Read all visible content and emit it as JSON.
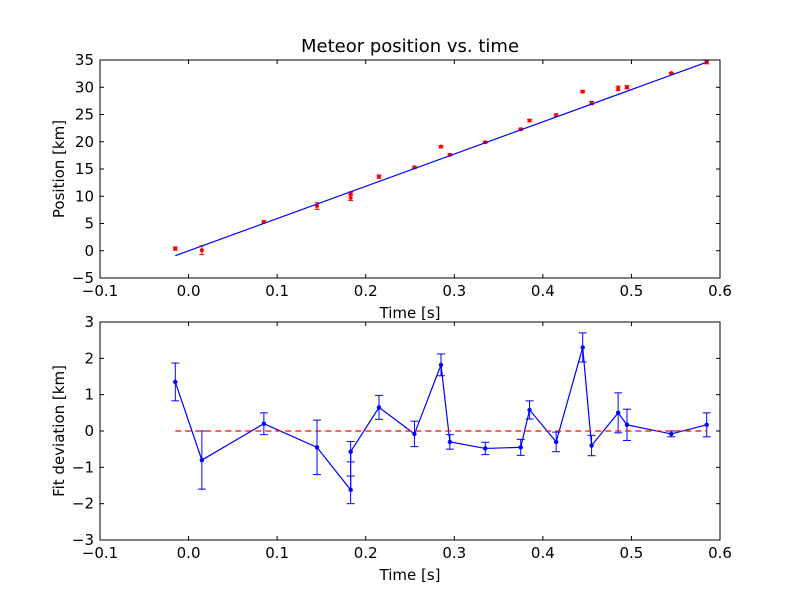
{
  "chart_data": [
    {
      "type": "scatter",
      "title": "Meteor position vs. time",
      "xlabel": "Time [s]",
      "ylabel": "Position [km]",
      "xlim": [
        -0.1,
        0.6
      ],
      "ylim": [
        -5,
        35
      ],
      "xticks": [
        "−0.1",
        "0.0",
        "0.1",
        "0.2",
        "0.3",
        "0.4",
        "0.5",
        "0.6"
      ],
      "yticks": [
        "−5",
        "0",
        "5",
        "10",
        "15",
        "20",
        "25",
        "30",
        "35"
      ],
      "grid": false,
      "series": [
        {
          "kind": "errorbar-points",
          "color": "#ff0000",
          "x": [
            -0.015,
            0.015,
            0.085,
            0.145,
            0.183,
            0.183,
            0.215,
            0.255,
            0.285,
            0.295,
            0.335,
            0.375,
            0.385,
            0.415,
            0.445,
            0.455,
            0.485,
            0.495,
            0.545,
            0.585
          ],
          "y": [
            0.4,
            0.1,
            5.3,
            8.2,
            9.7,
            10.5,
            13.6,
            15.3,
            19.1,
            17.6,
            19.9,
            22.3,
            23.9,
            24.9,
            29.2,
            27.1,
            29.8,
            30.0,
            32.6,
            34.6
          ],
          "err": [
            0.3,
            0.8,
            0.2,
            0.6,
            0.5,
            0.3,
            0.3,
            0.2,
            0.2,
            0.2,
            0.1,
            0.2,
            0.2,
            0.2,
            0.2,
            0.3,
            0.4,
            0.3,
            0.1,
            0.3
          ]
        },
        {
          "kind": "line",
          "color": "#0000ff",
          "x": [
            -0.015,
            0.585
          ],
          "y": [
            -0.9,
            34.6
          ]
        }
      ]
    },
    {
      "type": "line",
      "title": "",
      "xlabel": "Time [s]",
      "ylabel": "Fit deviation [km]",
      "xlim": [
        -0.1,
        0.6
      ],
      "ylim": [
        -3,
        3
      ],
      "xticks": [
        "−0.1",
        "0.0",
        "0.1",
        "0.2",
        "0.3",
        "0.4",
        "0.5",
        "0.6"
      ],
      "yticks": [
        "−3",
        "−2",
        "−1",
        "0",
        "1",
        "2",
        "3"
      ],
      "grid": false,
      "series": [
        {
          "kind": "errorbar-line",
          "color": "#0000ff",
          "x": [
            -0.015,
            0.015,
            0.085,
            0.145,
            0.183,
            0.183,
            0.215,
            0.255,
            0.285,
            0.295,
            0.335,
            0.375,
            0.385,
            0.415,
            0.445,
            0.455,
            0.485,
            0.495,
            0.545,
            0.585
          ],
          "y": [
            1.35,
            -0.8,
            0.2,
            -0.45,
            -1.62,
            -0.57,
            0.65,
            -0.08,
            1.82,
            -0.3,
            -0.48,
            -0.45,
            0.58,
            -0.3,
            2.3,
            -0.4,
            0.5,
            0.17,
            -0.08,
            0.17
          ],
          "err": [
            0.52,
            0.8,
            0.3,
            0.75,
            0.38,
            0.28,
            0.33,
            0.35,
            0.3,
            0.2,
            0.17,
            0.22,
            0.25,
            0.27,
            0.4,
            0.28,
            0.55,
            0.43,
            0.08,
            0.33
          ]
        },
        {
          "kind": "dashed-line",
          "color": "#ff0000",
          "x": [
            -0.015,
            0.585
          ],
          "y": [
            0,
            0
          ]
        }
      ]
    }
  ]
}
